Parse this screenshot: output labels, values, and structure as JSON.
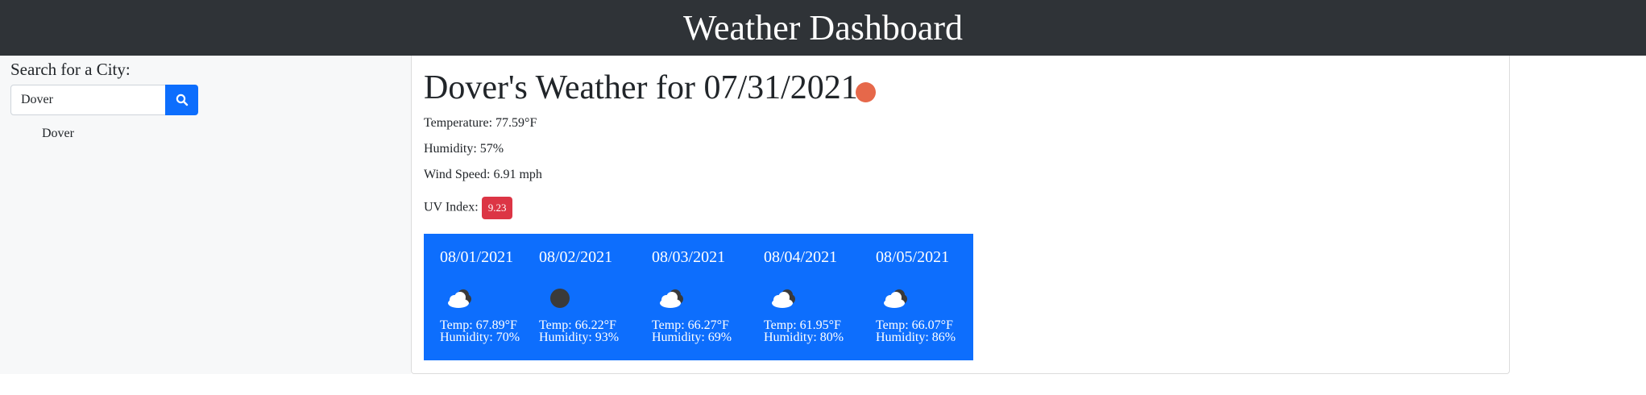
{
  "header": {
    "title": "Weather Dashboard"
  },
  "sidebar": {
    "search_label": "Search for a City:",
    "search_value": "Dover",
    "search_icon": "search-icon",
    "history": [
      "Dover"
    ]
  },
  "current": {
    "title": "Dover's Weather for 07/31/2021",
    "icon": "clear-sun-icon",
    "icon_color": "#e6684a",
    "temperature": "Temperature: 77.59°F",
    "humidity": "Humidity: 57%",
    "wind": "Wind Speed: 6.91 mph",
    "uv_label": "UV Index:",
    "uv_value": "9.23",
    "uv_color": "#dc3545"
  },
  "forecast": {
    "background": "#0d6efd",
    "days": [
      {
        "date": "08/01/2021",
        "icon": "cloudy-icon",
        "temp": "Temp: 67.89°F",
        "humidity": "Humidity: 70%"
      },
      {
        "date": "08/02/2021",
        "icon": "night-clear-icon",
        "temp": "Temp: 66.22°F",
        "humidity": "Humidity: 93%"
      },
      {
        "date": "08/03/2021",
        "icon": "cloudy-icon",
        "temp": "Temp: 66.27°F",
        "humidity": "Humidity: 69%"
      },
      {
        "date": "08/04/2021",
        "icon": "cloudy-icon",
        "temp": "Temp: 61.95°F",
        "humidity": "Humidity: 80%"
      },
      {
        "date": "08/05/2021",
        "icon": "cloudy-icon",
        "temp": "Temp: 66.07°F",
        "humidity": "Humidity: 86%"
      }
    ]
  }
}
